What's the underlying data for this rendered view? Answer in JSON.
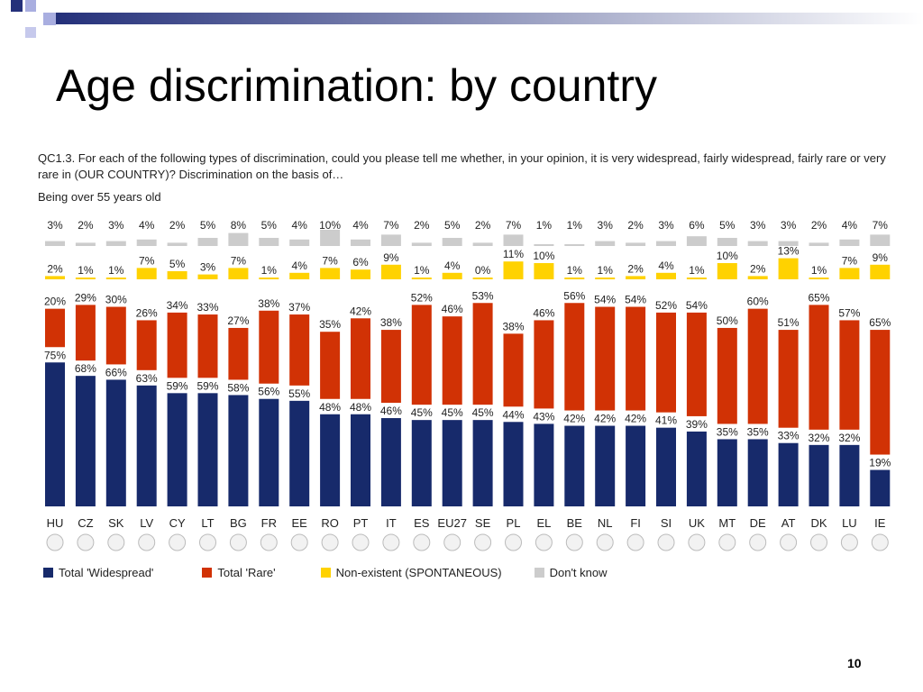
{
  "slide": {
    "title": "Age discrimination: by country",
    "question": "QC1.3. For each of the following types of discrimination, could you please tell me whether, in your opinion, it is very widespread, fairly widespread, fairly rare or very rare in (OUR COUNTRY)? Discrimination on the basis of…",
    "subtitle": "Being over 55 years old",
    "page_number": "10"
  },
  "colors": {
    "widespread": "#172a6b",
    "rare": "#d13205",
    "nonexistent": "#ffd200",
    "dont_know": "#cccccc",
    "decoration_dark": "#24307a",
    "decoration_light": "#a9aee0"
  },
  "chart_data": {
    "type": "bar",
    "categories": [
      "HU",
      "CZ",
      "SK",
      "LV",
      "CY",
      "LT",
      "BG",
      "FR",
      "EE",
      "RO",
      "PT",
      "IT",
      "ES",
      "EU27",
      "SE",
      "PL",
      "EL",
      "BE",
      "NL",
      "FI",
      "SI",
      "UK",
      "MT",
      "DE",
      "AT",
      "DK",
      "LU",
      "IE"
    ],
    "series": [
      {
        "name": "Total 'Widespread'",
        "values": [
          75,
          68,
          66,
          63,
          59,
          59,
          58,
          56,
          55,
          48,
          48,
          46,
          45,
          45,
          45,
          44,
          43,
          42,
          42,
          42,
          41,
          39,
          35,
          35,
          33,
          32,
          32,
          19
        ]
      },
      {
        "name": "Total 'Rare'",
        "values": [
          20,
          29,
          30,
          26,
          34,
          33,
          27,
          38,
          37,
          35,
          42,
          38,
          52,
          46,
          53,
          38,
          46,
          56,
          54,
          54,
          52,
          54,
          50,
          60,
          51,
          65,
          57,
          65
        ]
      },
      {
        "name": "Non-existent (SPONTANEOUS)",
        "values": [
          2,
          1,
          1,
          7,
          5,
          3,
          7,
          1,
          4,
          7,
          6,
          9,
          1,
          4,
          0,
          11,
          10,
          1,
          1,
          2,
          4,
          1,
          10,
          2,
          13,
          1,
          7,
          9
        ]
      },
      {
        "name": "Don't know",
        "values": [
          3,
          2,
          3,
          4,
          2,
          5,
          8,
          5,
          4,
          10,
          4,
          7,
          2,
          5,
          2,
          7,
          1,
          1,
          3,
          2,
          3,
          6,
          5,
          3,
          3,
          2,
          4,
          7
        ]
      }
    ],
    "ylim": [
      0,
      100
    ],
    "legend_position": "bottom"
  }
}
